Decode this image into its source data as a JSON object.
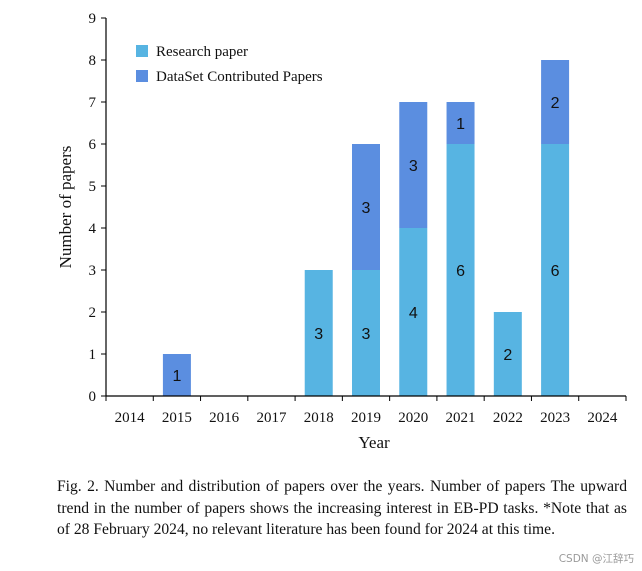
{
  "chart_data": {
    "type": "bar",
    "stacked": true,
    "categories": [
      "2014",
      "2015",
      "2016",
      "2017",
      "2018",
      "2019",
      "2020",
      "2021",
      "2022",
      "2023",
      "2024"
    ],
    "series": [
      {
        "name": "Research paper",
        "color": "#57b4e2",
        "values": [
          0,
          0,
          0,
          0,
          3,
          3,
          4,
          6,
          2,
          6,
          0
        ]
      },
      {
        "name": "DataSet Contributed Papers",
        "color": "#5b8ee0",
        "values": [
          0,
          1,
          0,
          0,
          0,
          3,
          3,
          1,
          0,
          2,
          0
        ]
      }
    ],
    "xlabel": "Year",
    "ylabel": "Number of papers",
    "ylim": [
      0,
      9
    ],
    "yticks": [
      "0",
      "1",
      "2",
      "3",
      "4",
      "5",
      "6",
      "7",
      "8",
      "9"
    ],
    "legend_position": "top-left",
    "grid": false
  },
  "caption": "Fig. 2.  Number and distribution of papers over the years. Number of papers The upward trend in the number of papers shows the increasing interest in EB-PD tasks. *Note that as of 28 February 2024, no relevant literature has been found for 2024 at this time.",
  "watermark": "CSDN @江辞巧"
}
